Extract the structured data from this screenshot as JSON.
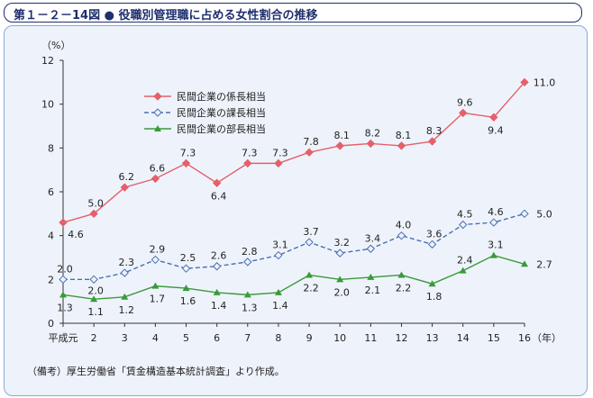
{
  "header": {
    "title": "第１－２－14図 ● 役職別管理職に占める女性割合の推移"
  },
  "source_note": "（備考）厚生労働省「賃金構造基本統計調査」より作成。",
  "colors": {
    "series_0": "#e4606a",
    "series_1": "#4a6fb0",
    "series_2": "#3a9a3a",
    "title_border": "#1e2f6e",
    "panel_bg": "#eef3fb"
  },
  "chart_data": {
    "type": "line",
    "title": "",
    "ylabel": "（%）",
    "xlabel": "（年）",
    "ylim": [
      0,
      12
    ],
    "yticks": [
      0,
      2,
      4,
      6,
      8,
      10,
      12
    ],
    "categories": [
      "平成元",
      "2",
      "3",
      "4",
      "5",
      "6",
      "7",
      "8",
      "9",
      "10",
      "11",
      "12",
      "13",
      "14",
      "15",
      "16"
    ],
    "legend_position": "top-left",
    "grid": false,
    "series": [
      {
        "name": "民間企業の係長相当",
        "marker": "diamond-filled",
        "line": "solid",
        "values": [
          4.6,
          5.0,
          6.2,
          6.6,
          7.3,
          6.4,
          7.3,
          7.3,
          7.8,
          8.1,
          8.2,
          8.1,
          8.3,
          9.6,
          9.4,
          11.0
        ],
        "labels": [
          "4.6",
          "5.0",
          "6.2",
          "6.6",
          "7.3",
          "6.4",
          "7.3",
          "7.3",
          "7.8",
          "8.1",
          "8.2",
          "8.1",
          "8.3",
          "9.6",
          "9.4",
          "11.0"
        ]
      },
      {
        "name": "民間企業の課長相当",
        "marker": "diamond-open",
        "line": "dashed",
        "values": [
          2.0,
          2.0,
          2.3,
          2.9,
          2.5,
          2.6,
          2.8,
          3.1,
          3.7,
          3.2,
          3.4,
          4.0,
          3.6,
          4.5,
          4.6,
          5.0
        ],
        "labels": [
          "2.0",
          "2.0",
          "2.3",
          "2.9",
          "2.5",
          "2.6",
          "2.8",
          "3.1",
          "3.7",
          "3.2",
          "3.4",
          "4.0",
          "3.6",
          "4.5",
          "4.6",
          "5.0"
        ]
      },
      {
        "name": "民間企業の部長相当",
        "marker": "triangle-filled",
        "line": "solid",
        "values": [
          1.3,
          1.1,
          1.2,
          1.7,
          1.6,
          1.4,
          1.3,
          1.4,
          2.2,
          2.0,
          2.1,
          2.2,
          1.8,
          2.4,
          3.1,
          2.7
        ],
        "labels": [
          "1.3",
          "1.1",
          "1.2",
          "1.7",
          "1.6",
          "1.4",
          "1.3",
          "1.4",
          "2.2",
          "2.0",
          "2.1",
          "2.2",
          "1.8",
          "2.4",
          "3.1",
          "2.7"
        ]
      }
    ]
  }
}
